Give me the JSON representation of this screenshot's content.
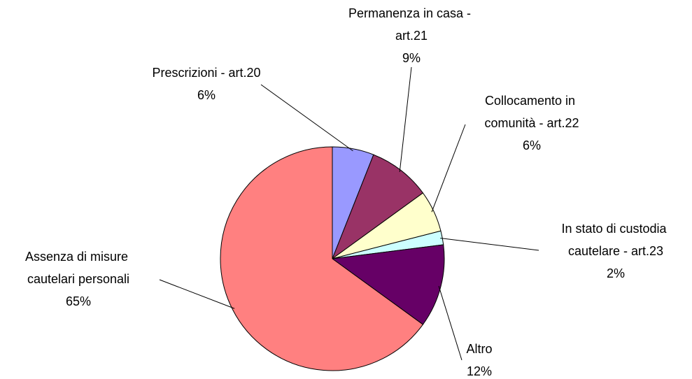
{
  "chart_data": {
    "type": "pie",
    "categories": [
      "Prescrizioni - art.20",
      "Permanenza in casa - art.21",
      "Collocamento in comunità - art.22",
      "In stato di custodia cautelare - art.23",
      "Altro",
      "Assenza di misure cautelari personali"
    ],
    "values": [
      6,
      9,
      6,
      2,
      12,
      65
    ],
    "value_labels": [
      "6%",
      "9%",
      "6%",
      "2%",
      "12%",
      "65%"
    ],
    "colors": [
      "#9999ff",
      "#993366",
      "#ffffcc",
      "#ccffff",
      "#660066",
      "#ff8080"
    ]
  }
}
